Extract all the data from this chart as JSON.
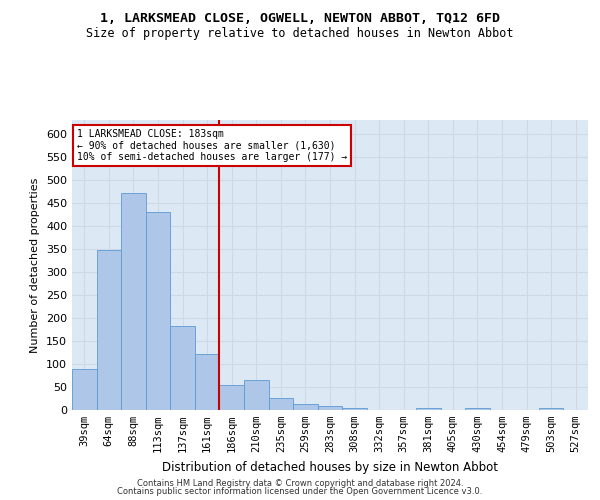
{
  "title": "1, LARKSMEAD CLOSE, OGWELL, NEWTON ABBOT, TQ12 6FD",
  "subtitle": "Size of property relative to detached houses in Newton Abbot",
  "xlabel": "Distribution of detached houses by size in Newton Abbot",
  "ylabel": "Number of detached properties",
  "categories": [
    "39sqm",
    "64sqm",
    "88sqm",
    "113sqm",
    "137sqm",
    "161sqm",
    "186sqm",
    "210sqm",
    "235sqm",
    "259sqm",
    "283sqm",
    "308sqm",
    "332sqm",
    "357sqm",
    "381sqm",
    "405sqm",
    "430sqm",
    "454sqm",
    "479sqm",
    "503sqm",
    "527sqm"
  ],
  "values": [
    88,
    348,
    472,
    430,
    183,
    122,
    55,
    65,
    25,
    12,
    8,
    5,
    0,
    0,
    5,
    0,
    5,
    0,
    0,
    5,
    0
  ],
  "bar_color": "#aec6e8",
  "bar_edge_color": "#5b9bd5",
  "grid_color": "#d0d8e8",
  "background_color": "#dde8f5",
  "vline_x_index": 6,
  "vline_color": "#cc0000",
  "annotation_line1": "1 LARKSMEAD CLOSE: 183sqm",
  "annotation_line2": "← 90% of detached houses are smaller (1,630)",
  "annotation_line3": "10% of semi-detached houses are larger (177) →",
  "annotation_box_color": "#ffffff",
  "annotation_box_edge": "#cc0000",
  "ylim": [
    0,
    630
  ],
  "yticks": [
    0,
    50,
    100,
    150,
    200,
    250,
    300,
    350,
    400,
    450,
    500,
    550,
    600
  ],
  "footnote1": "Contains HM Land Registry data © Crown copyright and database right 2024.",
  "footnote2": "Contains public sector information licensed under the Open Government Licence v3.0."
}
